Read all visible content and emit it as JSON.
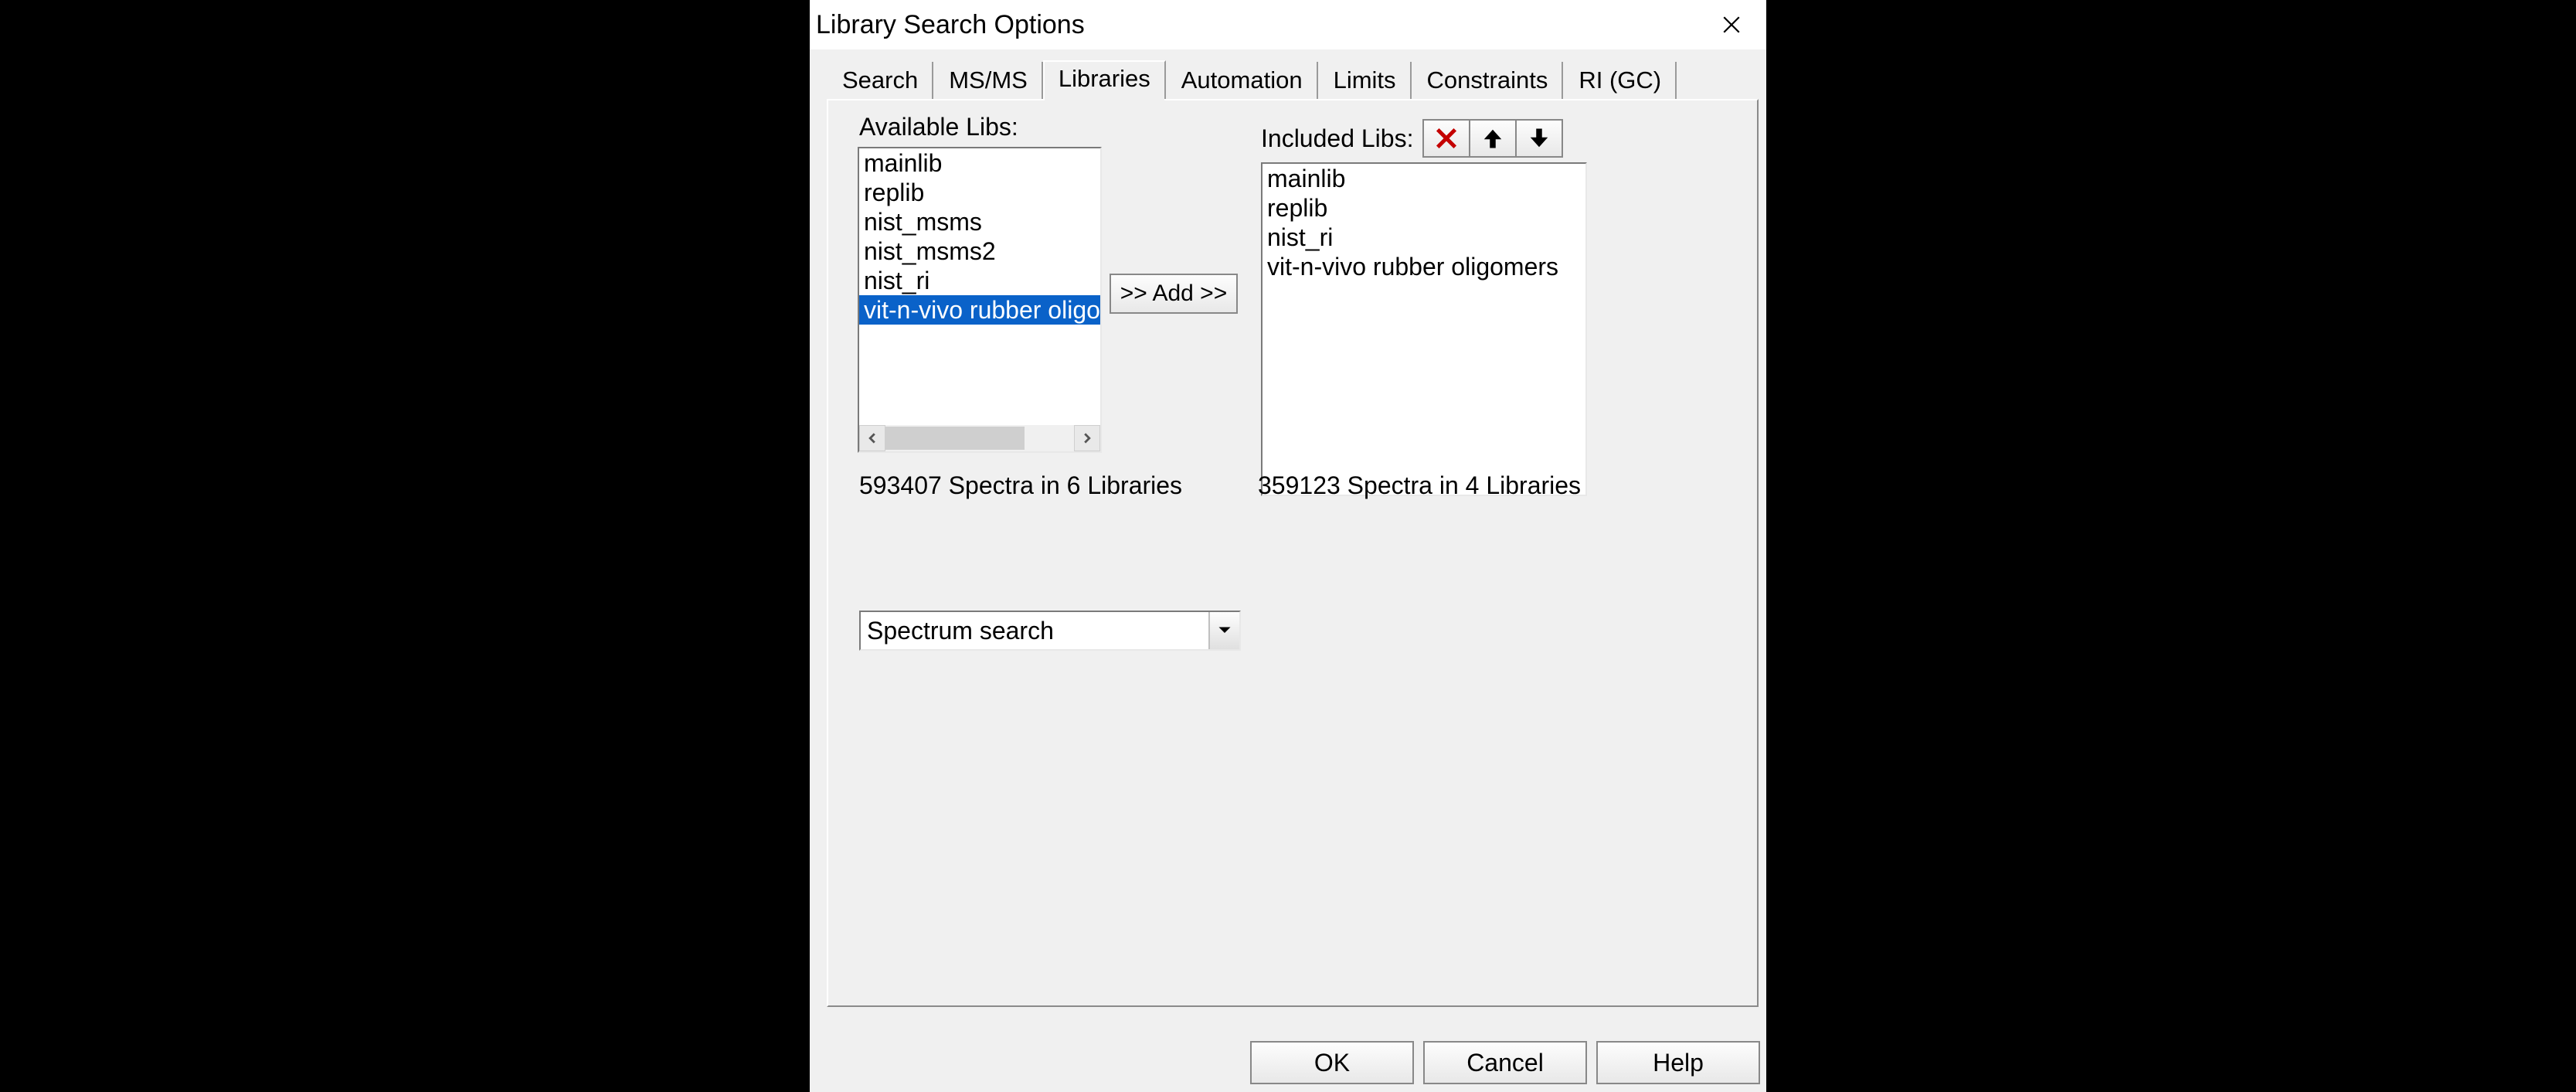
{
  "window": {
    "title": "Library Search Options"
  },
  "tabs": [
    {
      "label": "Search"
    },
    {
      "label": "MS/MS"
    },
    {
      "label": "Libraries"
    },
    {
      "label": "Automation"
    },
    {
      "label": "Limits"
    },
    {
      "label": "Constraints"
    },
    {
      "label": "RI (GC)"
    }
  ],
  "active_tab_index": 2,
  "labels": {
    "available": "Available Libs:",
    "included": "Included Libs:",
    "add_button": ">> Add >>"
  },
  "available_libs": {
    "items": [
      {
        "name": "mainlib",
        "selected": false
      },
      {
        "name": "replib",
        "selected": false
      },
      {
        "name": "nist_msms",
        "selected": false
      },
      {
        "name": "nist_msms2",
        "selected": false
      },
      {
        "name": "nist_ri",
        "selected": false
      },
      {
        "name": "vit-n-vivo rubber oligomers",
        "selected": true
      }
    ],
    "count_text": "593407 Spectra in 6 Libraries"
  },
  "included_libs": {
    "items": [
      {
        "name": "mainlib"
      },
      {
        "name": "replib"
      },
      {
        "name": "nist_ri"
      },
      {
        "name": "vit-n-vivo rubber oligomers"
      }
    ],
    "count_text": "359123 Spectra in 4 Libraries",
    "icon_colors": {
      "remove_stroke": "#c40000",
      "arrow_fill": "#000000"
    }
  },
  "combo": {
    "value": "Spectrum search"
  },
  "buttons": {
    "ok": "OK",
    "cancel": "Cancel",
    "help": "Help"
  },
  "colors": {
    "selection_bg": "#0a62c9",
    "selection_fg": "#ffffff",
    "dialog_bg": "#f0f0f0"
  }
}
